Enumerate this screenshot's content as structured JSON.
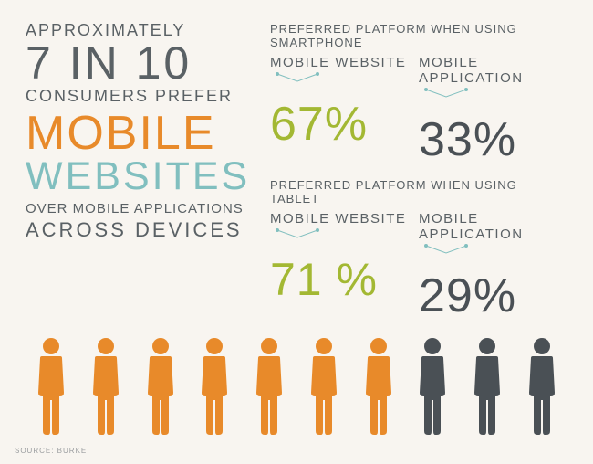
{
  "headline": {
    "line1": "APPROXIMATELY",
    "line2": "7 IN 10",
    "line3": "CONSUMERS PREFER",
    "line4": "MOBILE",
    "line5": "WEBSITES",
    "line6": "OVER MOBILE APPLICATIONS",
    "line7": "ACROSS DEVICES"
  },
  "smartphone": {
    "title": "PREFERRED PLATFORM WHEN USING SMARTPHONE",
    "col1_label": "MOBILE WEBSITE",
    "col1_value": "67%",
    "col2_label": "MOBILE APPLICATION",
    "col2_value": "33%"
  },
  "tablet": {
    "title": "PREFERRED PLATFORM WHEN USING TABLET",
    "col1_label": "MOBILE WEBSITE",
    "col1_value": "71 %",
    "col2_label": "MOBILE APPLICATION",
    "col2_value": "29%"
  },
  "people": {
    "total": 10,
    "highlighted_count": 7,
    "highlight_color": "#e88a2a",
    "muted_color": "#4a5055"
  },
  "colors": {
    "text_gray": "#5a6165",
    "orange": "#e88a2a",
    "teal": "#81bfbf",
    "green": "#a3b833",
    "dark": "#4a5055",
    "bg": "#f8f5f0"
  },
  "source": "SOURCE: BURKE"
}
